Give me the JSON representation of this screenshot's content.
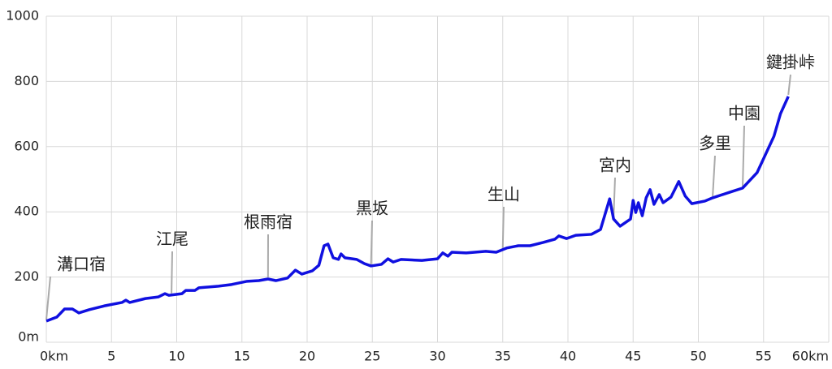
{
  "chart_data": {
    "type": "line",
    "xlim": [
      0,
      60
    ],
    "ylim": [
      0,
      1000
    ],
    "xticks": [
      {
        "value": 0,
        "label": "0km"
      },
      5,
      10,
      15,
      20,
      25,
      30,
      35,
      40,
      45,
      50,
      55,
      {
        "value": 60,
        "label": "60km"
      }
    ],
    "yticks": [
      {
        "value": 0,
        "label": "0m"
      },
      200,
      400,
      600,
      800,
      1000
    ],
    "grid": true,
    "series": [
      {
        "color": "#1010e0",
        "x": [
          0,
          0.8,
          1.4,
          2.0,
          2.5,
          3.3,
          4.5,
          5.8,
          6.1,
          6.4,
          7.6,
          8.6,
          9.1,
          9.4,
          10.4,
          10.7,
          11.4,
          11.7,
          13.2,
          14.2,
          14.8,
          15.4,
          16.3,
          17.0,
          17.6,
          18.5,
          19.1,
          19.6,
          20.4,
          20.9,
          21.3,
          21.6,
          22.0,
          22.4,
          22.6,
          22.9,
          23.8,
          24.4,
          24.9,
          25.7,
          26.2,
          26.6,
          27.2,
          28.8,
          30.0,
          30.4,
          30.8,
          31.1,
          32.2,
          33.7,
          34.5,
          35.3,
          36.2,
          37.1,
          38.1,
          39.0,
          39.3,
          39.9,
          40.6,
          41.8,
          42.5,
          43.2,
          43.5,
          44.0,
          44.8,
          45.0,
          45.2,
          45.4,
          45.7,
          46.0,
          46.3,
          46.6,
          47.0,
          47.3,
          47.9,
          48.5,
          49.0,
          49.5,
          50.5,
          51.1,
          52.4,
          53.4,
          54.5,
          55.8,
          56.3,
          56.9
        ],
        "values": [
          65,
          77,
          102,
          102,
          90,
          100,
          112,
          122,
          129,
          122,
          134,
          139,
          149,
          144,
          149,
          159,
          159,
          167,
          172,
          177,
          182,
          187,
          189,
          194,
          189,
          197,
          221,
          209,
          219,
          236,
          296,
          301,
          259,
          254,
          271,
          259,
          254,
          241,
          234,
          239,
          256,
          246,
          254,
          251,
          256,
          274,
          264,
          276,
          274,
          279,
          276,
          289,
          296,
          296,
          306,
          316,
          326,
          318,
          328,
          331,
          346,
          440,
          378,
          356,
          378,
          435,
          398,
          428,
          388,
          443,
          468,
          423,
          453,
          428,
          445,
          493,
          448,
          425,
          433,
          443,
          460,
          473,
          520,
          632,
          701,
          754
        ]
      }
    ],
    "annotations": [
      {
        "text": "溝口宿",
        "x": 0
      },
      {
        "text": "江尾",
        "x": 9.6
      },
      {
        "text": "根雨宿",
        "x": 17.0
      },
      {
        "text": "黒坂",
        "x": 24.9
      },
      {
        "text": "生山",
        "x": 35.0
      },
      {
        "text": "宮内",
        "x": 43.5
      },
      {
        "text": "多里",
        "x": 51.1
      },
      {
        "text": "中園",
        "x": 53.4
      },
      {
        "text": "鍵掛峠",
        "x": 56.9
      }
    ]
  }
}
